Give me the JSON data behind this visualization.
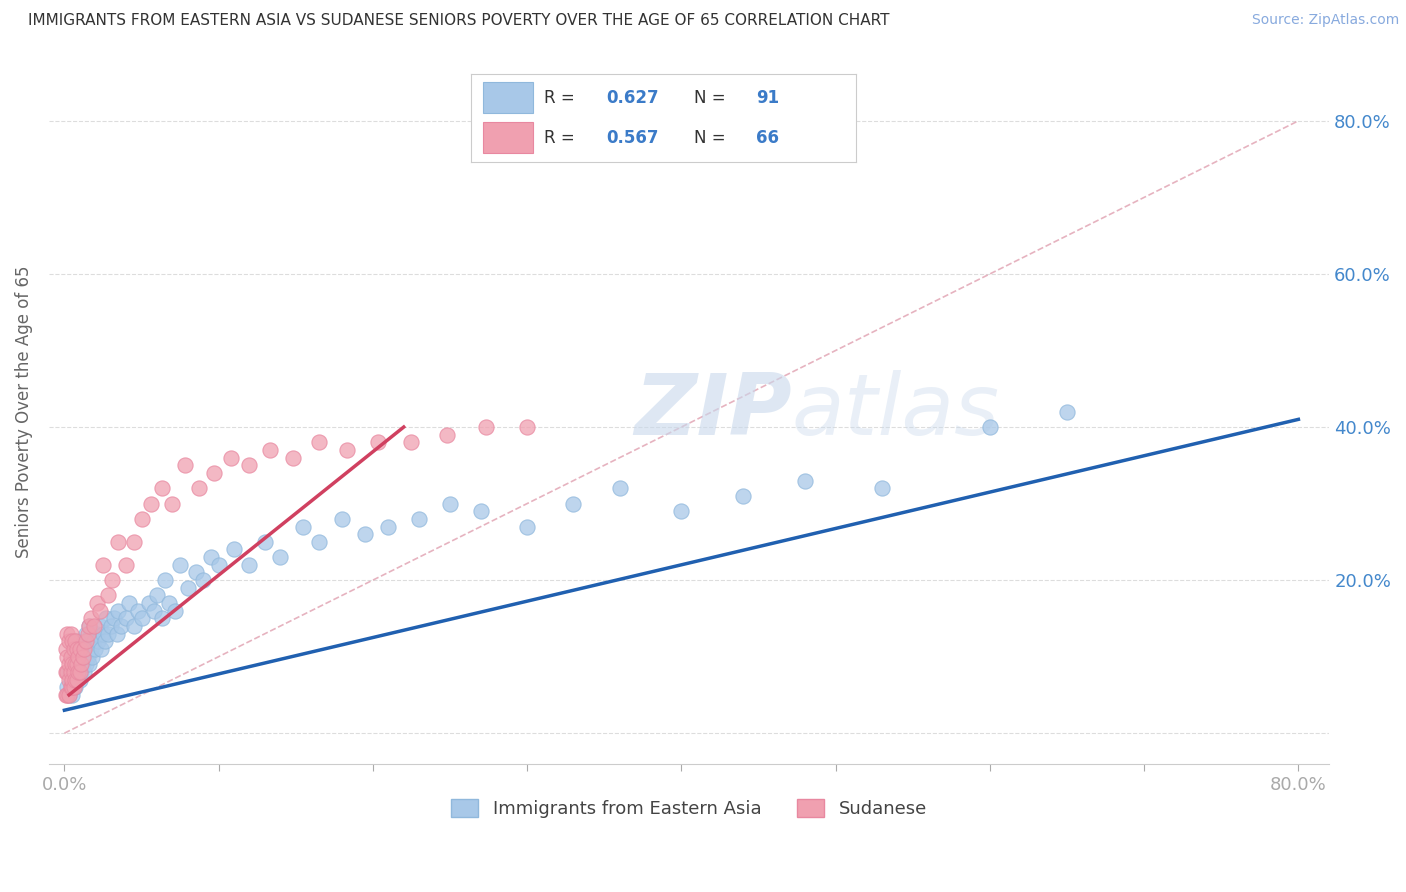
{
  "title": "IMMIGRANTS FROM EASTERN ASIA VS SUDANESE SENIORS POVERTY OVER THE AGE OF 65 CORRELATION CHART",
  "source": "Source: ZipAtlas.com",
  "ylabel": "Seniors Poverty Over the Age of 65",
  "xlim": [
    -0.01,
    0.82
  ],
  "ylim": [
    -0.04,
    0.88
  ],
  "xtick_positions": [
    0.0,
    0.1,
    0.2,
    0.3,
    0.4,
    0.5,
    0.6,
    0.7,
    0.8
  ],
  "xticklabels": [
    "0.0%",
    "",
    "",
    "",
    "",
    "",
    "",
    "",
    "80.0%"
  ],
  "ytick_positions": [
    0.0,
    0.2,
    0.4,
    0.6,
    0.8
  ],
  "yticklabels_right": [
    "",
    "20.0%",
    "40.0%",
    "60.0%",
    "80.0%"
  ],
  "blue_R": "0.627",
  "blue_N": "91",
  "pink_R": "0.567",
  "pink_N": "66",
  "blue_color": "#A8C8E8",
  "pink_color": "#F0A0B0",
  "blue_line_color": "#2060B0",
  "pink_line_color": "#D04060",
  "ref_line_color": "#E0A0B0",
  "watermark_zip": "ZIP",
  "watermark_atlas": "atlas",
  "blue_trend_x0": 0.0,
  "blue_trend_y0": 0.03,
  "blue_trend_x1": 0.8,
  "blue_trend_y1": 0.41,
  "pink_trend_x0": 0.003,
  "pink_trend_y0": 0.05,
  "pink_trend_x1": 0.22,
  "pink_trend_y1": 0.4,
  "blue_scatter_x": [
    0.002,
    0.003,
    0.003,
    0.004,
    0.004,
    0.005,
    0.005,
    0.005,
    0.006,
    0.006,
    0.006,
    0.007,
    0.007,
    0.007,
    0.008,
    0.008,
    0.008,
    0.009,
    0.009,
    0.01,
    0.01,
    0.01,
    0.011,
    0.011,
    0.012,
    0.012,
    0.013,
    0.013,
    0.014,
    0.014,
    0.015,
    0.015,
    0.016,
    0.016,
    0.017,
    0.017,
    0.018,
    0.019,
    0.02,
    0.021,
    0.022,
    0.023,
    0.024,
    0.025,
    0.026,
    0.027,
    0.028,
    0.03,
    0.032,
    0.034,
    0.035,
    0.037,
    0.04,
    0.042,
    0.045,
    0.048,
    0.05,
    0.055,
    0.058,
    0.06,
    0.063,
    0.065,
    0.068,
    0.072,
    0.075,
    0.08,
    0.085,
    0.09,
    0.095,
    0.1,
    0.11,
    0.12,
    0.13,
    0.14,
    0.155,
    0.165,
    0.18,
    0.195,
    0.21,
    0.23,
    0.25,
    0.27,
    0.3,
    0.33,
    0.36,
    0.4,
    0.44,
    0.48,
    0.53,
    0.6,
    0.65
  ],
  "blue_scatter_y": [
    0.06,
    0.05,
    0.08,
    0.06,
    0.07,
    0.05,
    0.07,
    0.09,
    0.06,
    0.08,
    0.1,
    0.06,
    0.08,
    0.11,
    0.07,
    0.09,
    0.12,
    0.08,
    0.1,
    0.07,
    0.09,
    0.11,
    0.08,
    0.1,
    0.09,
    0.11,
    0.08,
    0.12,
    0.09,
    0.13,
    0.1,
    0.12,
    0.09,
    0.14,
    0.11,
    0.13,
    0.1,
    0.12,
    0.11,
    0.13,
    0.12,
    0.14,
    0.11,
    0.13,
    0.12,
    0.15,
    0.13,
    0.14,
    0.15,
    0.13,
    0.16,
    0.14,
    0.15,
    0.17,
    0.14,
    0.16,
    0.15,
    0.17,
    0.16,
    0.18,
    0.15,
    0.2,
    0.17,
    0.16,
    0.22,
    0.19,
    0.21,
    0.2,
    0.23,
    0.22,
    0.24,
    0.22,
    0.25,
    0.23,
    0.27,
    0.25,
    0.28,
    0.26,
    0.27,
    0.28,
    0.3,
    0.29,
    0.27,
    0.3,
    0.32,
    0.29,
    0.31,
    0.33,
    0.32,
    0.4,
    0.42
  ],
  "pink_scatter_x": [
    0.001,
    0.001,
    0.001,
    0.002,
    0.002,
    0.002,
    0.002,
    0.003,
    0.003,
    0.003,
    0.003,
    0.004,
    0.004,
    0.004,
    0.004,
    0.005,
    0.005,
    0.005,
    0.005,
    0.006,
    0.006,
    0.006,
    0.007,
    0.007,
    0.007,
    0.008,
    0.008,
    0.008,
    0.009,
    0.009,
    0.01,
    0.01,
    0.011,
    0.012,
    0.013,
    0.014,
    0.015,
    0.016,
    0.017,
    0.019,
    0.021,
    0.023,
    0.025,
    0.028,
    0.031,
    0.035,
    0.04,
    0.045,
    0.05,
    0.056,
    0.063,
    0.07,
    0.078,
    0.087,
    0.097,
    0.108,
    0.12,
    0.133,
    0.148,
    0.165,
    0.183,
    0.203,
    0.225,
    0.248,
    0.273,
    0.3
  ],
  "pink_scatter_y": [
    0.05,
    0.08,
    0.11,
    0.05,
    0.08,
    0.1,
    0.13,
    0.05,
    0.07,
    0.09,
    0.12,
    0.06,
    0.08,
    0.1,
    0.13,
    0.06,
    0.07,
    0.09,
    0.12,
    0.06,
    0.08,
    0.11,
    0.07,
    0.09,
    0.12,
    0.07,
    0.09,
    0.11,
    0.08,
    0.1,
    0.08,
    0.11,
    0.09,
    0.1,
    0.11,
    0.12,
    0.13,
    0.14,
    0.15,
    0.14,
    0.17,
    0.16,
    0.22,
    0.18,
    0.2,
    0.25,
    0.22,
    0.25,
    0.28,
    0.3,
    0.32,
    0.3,
    0.35,
    0.32,
    0.34,
    0.36,
    0.35,
    0.37,
    0.36,
    0.38,
    0.37,
    0.38,
    0.38,
    0.39,
    0.4,
    0.4
  ]
}
